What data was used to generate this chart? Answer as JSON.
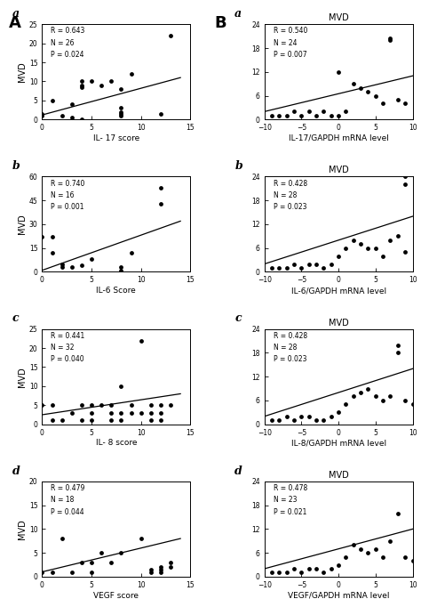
{
  "panels_left": [
    {
      "label": "a",
      "xlabel": "IL- 17 score",
      "ylabel": "MVD",
      "stats": "R = 0.643\nN = 26\nP = 0.024",
      "xlim": [
        0,
        15
      ],
      "ylim": [
        0,
        25
      ],
      "xticks": [
        0,
        5,
        10,
        15
      ],
      "yticks": [
        0,
        5,
        10,
        15,
        20,
        25
      ],
      "points": [
        [
          0,
          1
        ],
        [
          0,
          1.5
        ],
        [
          1,
          5
        ],
        [
          2,
          1
        ],
        [
          3,
          4
        ],
        [
          3,
          0.5
        ],
        [
          4,
          0
        ],
        [
          4,
          10
        ],
        [
          4,
          9
        ],
        [
          4,
          8.5
        ],
        [
          5,
          10
        ],
        [
          6,
          9
        ],
        [
          7,
          10
        ],
        [
          8,
          8
        ],
        [
          8,
          3
        ],
        [
          8,
          2
        ],
        [
          8,
          1.5
        ],
        [
          8,
          1
        ],
        [
          9,
          12
        ],
        [
          12,
          1.5
        ],
        [
          13,
          22
        ]
      ],
      "line_x": [
        0,
        14
      ],
      "line_y": [
        1.2,
        11
      ]
    },
    {
      "label": "b",
      "xlabel": "IL-6 Score",
      "ylabel": "MVD",
      "stats": "R = 0.740\nN = 16\nP = 0.001",
      "xlim": [
        0,
        15
      ],
      "ylim": [
        0,
        60
      ],
      "xticks": [
        0,
        5,
        10,
        15
      ],
      "yticks": [
        0,
        15,
        30,
        45,
        60
      ],
      "points": [
        [
          0,
          22
        ],
        [
          1,
          22
        ],
        [
          1,
          12
        ],
        [
          2,
          5
        ],
        [
          2,
          3
        ],
        [
          3,
          3
        ],
        [
          4,
          4
        ],
        [
          5,
          8
        ],
        [
          8,
          3
        ],
        [
          8,
          1
        ],
        [
          9,
          12
        ],
        [
          12,
          43
        ],
        [
          12,
          53
        ]
      ],
      "line_x": [
        0,
        14
      ],
      "line_y": [
        1,
        32
      ]
    },
    {
      "label": "c",
      "xlabel": "IL- 8 score",
      "ylabel": "MVD",
      "stats": "R = 0.441\nN = 32\nP = 0.040",
      "xlim": [
        0,
        15
      ],
      "ylim": [
        0,
        25
      ],
      "xticks": [
        0,
        5,
        10,
        15
      ],
      "yticks": [
        0,
        5,
        10,
        15,
        20,
        25
      ],
      "points": [
        [
          0,
          5
        ],
        [
          1,
          1
        ],
        [
          1,
          5
        ],
        [
          2,
          1
        ],
        [
          3,
          3
        ],
        [
          4,
          1
        ],
        [
          4,
          5
        ],
        [
          5,
          5
        ],
        [
          5,
          3
        ],
        [
          5,
          1
        ],
        [
          6,
          5
        ],
        [
          7,
          5
        ],
        [
          7,
          3
        ],
        [
          7,
          1
        ],
        [
          8,
          10
        ],
        [
          8,
          3
        ],
        [
          8,
          1
        ],
        [
          9,
          5
        ],
        [
          9,
          3
        ],
        [
          10,
          3
        ],
        [
          10,
          22
        ],
        [
          11,
          5
        ],
        [
          11,
          3
        ],
        [
          11,
          1
        ],
        [
          12,
          5
        ],
        [
          12,
          3
        ],
        [
          12,
          1
        ],
        [
          13,
          5
        ]
      ],
      "line_x": [
        0,
        14
      ],
      "line_y": [
        2.5,
        8
      ]
    },
    {
      "label": "d",
      "xlabel": "VEGF score",
      "ylabel": "MVD",
      "stats": "R = 0.479\nN = 18\nP = 0.044",
      "xlim": [
        0,
        15
      ],
      "ylim": [
        0,
        20
      ],
      "xticks": [
        0,
        5,
        10,
        15
      ],
      "yticks": [
        0,
        5,
        10,
        15,
        20
      ],
      "points": [
        [
          0,
          1
        ],
        [
          1,
          1
        ],
        [
          2,
          8
        ],
        [
          3,
          1
        ],
        [
          4,
          3
        ],
        [
          5,
          1
        ],
        [
          5,
          3
        ],
        [
          6,
          5
        ],
        [
          7,
          3
        ],
        [
          8,
          5
        ],
        [
          10,
          8
        ],
        [
          11,
          1
        ],
        [
          11,
          1.5
        ],
        [
          12,
          1
        ],
        [
          12,
          1.5
        ],
        [
          12,
          2
        ],
        [
          13,
          2
        ],
        [
          13,
          3
        ]
      ],
      "line_x": [
        0,
        14
      ],
      "line_y": [
        1,
        8
      ]
    }
  ],
  "panels_right": [
    {
      "label": "a",
      "title": "MVD",
      "xlabel": "IL-17/GAPDH mRNA level",
      "ylabel": "",
      "stats": "R = 0.540\nN = 24\nP = 0.007",
      "xlim": [
        -10,
        10
      ],
      "ylim": [
        0,
        24
      ],
      "xticks": [
        -10,
        -5,
        0,
        5,
        10
      ],
      "yticks": [
        0,
        6,
        12,
        18,
        24
      ],
      "points": [
        [
          -9,
          1
        ],
        [
          -8,
          1
        ],
        [
          -7,
          1
        ],
        [
          -6,
          2
        ],
        [
          -5,
          1
        ],
        [
          -4,
          2
        ],
        [
          -3,
          1
        ],
        [
          -2,
          2
        ],
        [
          -1,
          1
        ],
        [
          0,
          12
        ],
        [
          0,
          1
        ],
        [
          1,
          2
        ],
        [
          2,
          9
        ],
        [
          3,
          8
        ],
        [
          4,
          7
        ],
        [
          5,
          6
        ],
        [
          6,
          4
        ],
        [
          7,
          20
        ],
        [
          7,
          20.5
        ],
        [
          8,
          5
        ],
        [
          9,
          4
        ]
      ],
      "line_x": [
        -10,
        10
      ],
      "line_y": [
        2,
        11
      ]
    },
    {
      "label": "b",
      "title": "MVD",
      "xlabel": "IL-6/GAPDH mRNA level",
      "ylabel": "",
      "stats": "R = 0.428\nN = 28\nP = 0.023",
      "xlim": [
        -10,
        10
      ],
      "ylim": [
        0,
        24
      ],
      "xticks": [
        -10,
        -5,
        0,
        5,
        10
      ],
      "yticks": [
        0,
        6,
        12,
        18,
        24
      ],
      "points": [
        [
          -9,
          1
        ],
        [
          -8,
          1
        ],
        [
          -7,
          1
        ],
        [
          -6,
          2
        ],
        [
          -5,
          1
        ],
        [
          -4,
          2
        ],
        [
          -3,
          2
        ],
        [
          -2,
          1
        ],
        [
          -1,
          2
        ],
        [
          0,
          4
        ],
        [
          1,
          6
        ],
        [
          2,
          8
        ],
        [
          3,
          7
        ],
        [
          4,
          6
        ],
        [
          5,
          6
        ],
        [
          6,
          4
        ],
        [
          7,
          8
        ],
        [
          8,
          9
        ],
        [
          9,
          5
        ],
        [
          9,
          22
        ],
        [
          9,
          24
        ]
      ],
      "line_x": [
        -10,
        10
      ],
      "line_y": [
        2,
        14
      ]
    },
    {
      "label": "c",
      "title": "MVD",
      "xlabel": "IL-8/GAPDH mRNA level",
      "ylabel": "",
      "stats": "R = 0.428\nN = 28\nP = 0.023",
      "xlim": [
        -10,
        10
      ],
      "ylim": [
        0,
        24
      ],
      "xticks": [
        -10,
        -5,
        0,
        5,
        10
      ],
      "yticks": [
        0,
        6,
        12,
        18,
        24
      ],
      "points": [
        [
          -9,
          1
        ],
        [
          -8,
          1
        ],
        [
          -7,
          2
        ],
        [
          -6,
          1
        ],
        [
          -5,
          2
        ],
        [
          -4,
          2
        ],
        [
          -3,
          1
        ],
        [
          -2,
          1
        ],
        [
          -1,
          2
        ],
        [
          0,
          3
        ],
        [
          1,
          5
        ],
        [
          2,
          7
        ],
        [
          3,
          8
        ],
        [
          4,
          9
        ],
        [
          5,
          7
        ],
        [
          6,
          6
        ],
        [
          7,
          7
        ],
        [
          8,
          18
        ],
        [
          8,
          20
        ],
        [
          9,
          6
        ],
        [
          10,
          5
        ]
      ],
      "line_x": [
        -10,
        10
      ],
      "line_y": [
        2,
        14
      ]
    },
    {
      "label": "d",
      "title": "MVD",
      "xlabel": "VEGF/GAPDH mRNA level",
      "ylabel": "",
      "stats": "R = 0.478\nN = 23\nP = 0.021",
      "xlim": [
        -10,
        10
      ],
      "ylim": [
        0,
        24
      ],
      "xticks": [
        -10,
        -5,
        0,
        5,
        10
      ],
      "yticks": [
        0,
        6,
        12,
        18,
        24
      ],
      "points": [
        [
          -9,
          1
        ],
        [
          -8,
          1
        ],
        [
          -7,
          1
        ],
        [
          -6,
          2
        ],
        [
          -5,
          1
        ],
        [
          -4,
          2
        ],
        [
          -3,
          2
        ],
        [
          -2,
          1
        ],
        [
          -1,
          2
        ],
        [
          0,
          3
        ],
        [
          1,
          5
        ],
        [
          2,
          8
        ],
        [
          3,
          7
        ],
        [
          4,
          6
        ],
        [
          5,
          7
        ],
        [
          6,
          5
        ],
        [
          7,
          9
        ],
        [
          8,
          16
        ],
        [
          9,
          5
        ],
        [
          10,
          4
        ]
      ],
      "line_x": [
        -10,
        10
      ],
      "line_y": [
        2,
        12
      ]
    }
  ],
  "fig_bg": "#ffffff",
  "text_color": "#000000",
  "point_color": "#000000",
  "line_color": "#000000"
}
